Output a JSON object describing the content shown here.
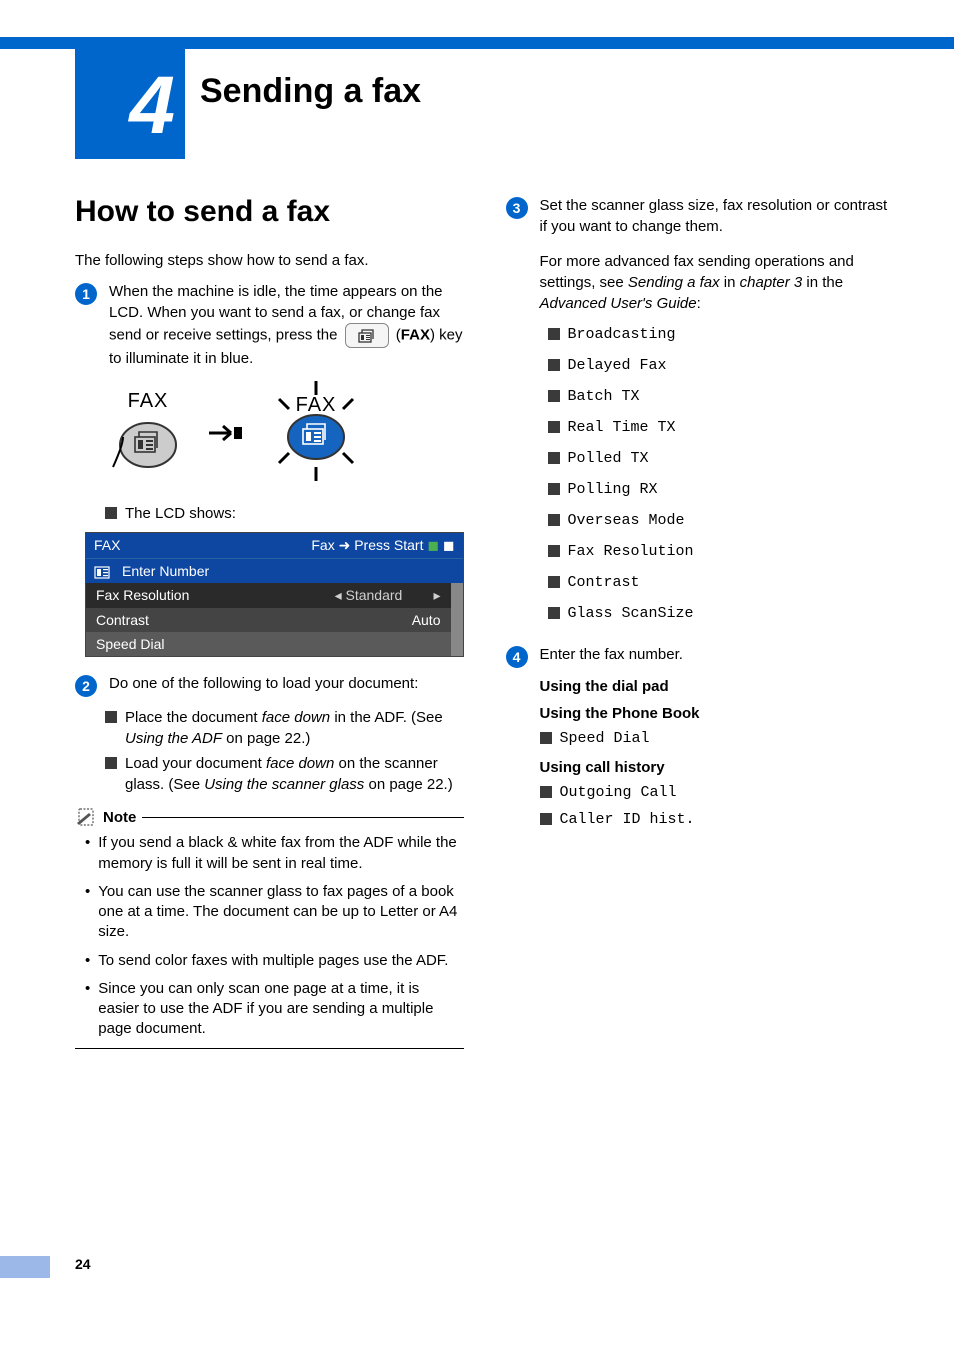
{
  "chapter": {
    "number": "4",
    "title": "Sending a fax"
  },
  "section_title": "How to send a fax",
  "intro": "The following steps show how to send a fax.",
  "step1": {
    "text_a": "When the machine is idle, the time appears on the LCD. When you want to send a fax, or change fax send or receive settings, press the ",
    "fax_bold": "FAX",
    "text_b": ") key to illuminate it in blue.",
    "lcd_shows": "The LCD shows:"
  },
  "fax_key_label": "FAX",
  "lcd": {
    "top_left": "FAX",
    "top_right": "Fax ➜ Press Start",
    "enter": "Enter Number",
    "rows": [
      {
        "label": "Fax Resolution",
        "value": "◂ Standard",
        "arrow": "▸"
      },
      {
        "label": "Contrast",
        "value": "Auto",
        "arrow": ""
      },
      {
        "label": "Speed Dial",
        "value": "",
        "arrow": ""
      }
    ]
  },
  "step2": {
    "text": "Do one of the following to load your document:",
    "items": [
      {
        "html": "Place the document <i>face down</i> in the ADF. (See <i>Using the ADF</i> on page 22.)"
      },
      {
        "html": "Load your document <i>face down</i> on the scanner glass. (See <i>Using the scanner glass</i> on page 22.)"
      }
    ]
  },
  "note": {
    "label": "Note",
    "items": [
      "If you send a black & white fax from the ADF while the memory is full it will be sent in real time.",
      "You can use the scanner glass to fax pages of a book one at a time. The document can be up to Letter or A4 size.",
      "To send color faxes with multiple pages use the ADF.",
      "Since you can only scan one page at a time, it is easier to use the ADF if you are sending a multiple page document."
    ]
  },
  "step3": {
    "text": "Set the scanner glass size, fax resolution or contrast if you want to change them.",
    "adv_html": "For more advanced fax sending operations and settings, see <i>Sending a fax</i> in <i>chapter 3</i> in the <i>Advanced User's Guide</i>:",
    "adv_items": [
      "Broadcasting",
      "Delayed Fax",
      "Batch TX",
      "Real Time TX",
      "Polled TX",
      "Polling RX",
      "Overseas Mode",
      "Fax Resolution",
      "Contrast",
      "Glass ScanSize"
    ]
  },
  "step4": {
    "text": "Enter the fax number.",
    "h1": "Using the dial pad",
    "h2": "Using the Phone Book",
    "h2_items": [
      "Speed Dial"
    ],
    "h3": "Using call history",
    "h3_items": [
      "Outgoing Call",
      "Caller ID hist."
    ]
  },
  "page_number": "24",
  "colors": {
    "brand_blue": "#0066cc",
    "lcd_blue": "#0d47a1"
  }
}
